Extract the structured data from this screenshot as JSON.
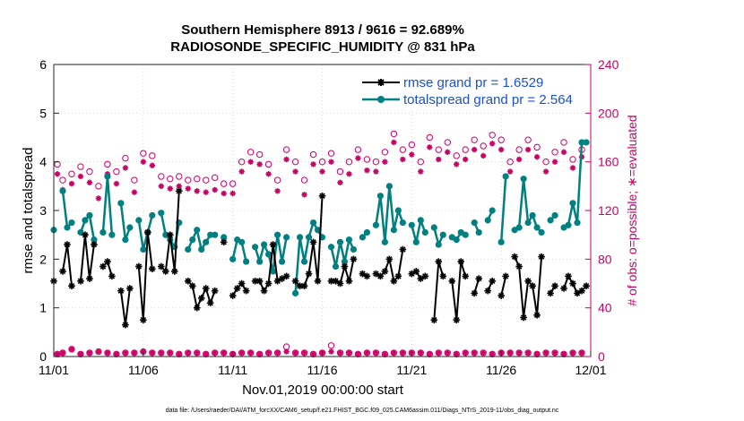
{
  "chart_data": {
    "type": "line",
    "title": "Southern Hemisphere 8913 / 9616 = 92.689%",
    "subtitle": "RADIOSONDE_SPECIFIC_HUMIDITY @ 831 hPa",
    "xlabel": "Nov.01,2019 00:00:00 start",
    "ylabel": "rmse and totalspread",
    "ylabel_right": "# of obs: o=possible; ∗=evaluated",
    "footnote": "data file: /Users/raeder/DAI/ATM_forcXX/CAM6_setup/f.e21.FHIST_BGC.f09_025.CAM6assim.011/Diags_NTrS_2019-11/obs_diag_output.nc",
    "xlim": [
      0,
      30
    ],
    "ylim": [
      0,
      6
    ],
    "ylim_right": [
      0,
      240
    ],
    "x_tick_labels": [
      "11/01",
      "11/06",
      "11/11",
      "11/16",
      "11/21",
      "11/26",
      "12/01"
    ],
    "x_tick_values": [
      0,
      5,
      10,
      15,
      20,
      25,
      30
    ],
    "y_ticks": [
      0,
      1,
      2,
      3,
      4,
      5,
      6
    ],
    "y_ticks_right": [
      0,
      40,
      80,
      120,
      160,
      200,
      240
    ],
    "legend_position": "top-right",
    "colors": {
      "rmse": "#000000",
      "totalspread": "#008080",
      "counts": "#cc0066"
    },
    "series": [
      {
        "name": "rmse grand pr = 1.6529",
        "axis": "left",
        "x": [
          0.0,
          0.25,
          0.5,
          0.75,
          1.0,
          1.25,
          1.5,
          1.75,
          2.0,
          2.25,
          2.5,
          2.75,
          3.0,
          3.25,
          3.5,
          3.75,
          4.0,
          4.25,
          4.5,
          4.75,
          5.0,
          5.25,
          5.5,
          5.75,
          6.0,
          6.25,
          6.5,
          6.75,
          7.0,
          7.25,
          7.5,
          7.75,
          8.0,
          8.25,
          8.5,
          8.75,
          9.0,
          9.25,
          9.5,
          9.75,
          10.0,
          10.25,
          10.5,
          10.75,
          11.0,
          11.25,
          11.5,
          11.75,
          12.0,
          12.25,
          12.5,
          12.75,
          13.0,
          13.25,
          13.5,
          13.75,
          14.0,
          14.25,
          14.5,
          14.75,
          15.0,
          15.25,
          15.5,
          15.75,
          16.0,
          16.25,
          16.5,
          16.75,
          17.0,
          17.25,
          17.5,
          17.75,
          18.0,
          18.25,
          18.5,
          18.75,
          19.0,
          19.25,
          19.5,
          19.75,
          20.0,
          20.25,
          20.5,
          20.75,
          21.0,
          21.25,
          21.5,
          21.75,
          22.0,
          22.25,
          22.5,
          22.75,
          23.0,
          23.25,
          23.5,
          23.75,
          24.0,
          24.25,
          24.5,
          24.75,
          25.0,
          25.25,
          25.5,
          25.75,
          26.0,
          26.25,
          26.5,
          26.75,
          27.0,
          27.25,
          27.5,
          27.75,
          28.0,
          28.25,
          28.5,
          28.75,
          29.0,
          29.25,
          29.5,
          29.75
        ],
        "values": [
          1.55,
          null,
          1.75,
          2.3,
          1.45,
          null,
          1.55,
          2.5,
          1.6,
          2.3,
          null,
          1.85,
          1.95,
          1.65,
          null,
          1.35,
          0.65,
          1.4,
          null,
          1.85,
          0.75,
          2.55,
          1.8,
          null,
          1.85,
          1.75,
          2.5,
          1.75,
          3.4,
          null,
          1.55,
          1.45,
          1.0,
          1.2,
          1.4,
          1.1,
          1.35,
          null,
          2.35,
          null,
          1.25,
          1.4,
          1.5,
          1.35,
          null,
          1.55,
          1.55,
          1.35,
          1.5,
          2.3,
          1.55,
          1.6,
          1.65,
          null,
          1.55,
          1.45,
          1.45,
          1.7,
          2.35,
          1.55,
          3.3,
          null,
          1.55,
          1.55,
          1.5,
          1.85,
          1.55,
          2.0,
          null,
          1.7,
          1.65,
          null,
          1.7,
          1.65,
          1.75,
          2.0,
          1.55,
          1.65,
          2.2,
          null,
          1.7,
          1.75,
          1.6,
          1.65,
          null,
          0.75,
          1.95,
          1.65,
          null,
          1.55,
          0.75,
          1.95,
          1.65,
          null,
          1.3,
          1.6,
          null,
          1.35,
          1.55,
          null,
          1.25,
          1.65,
          null,
          2.05,
          1.85,
          0.8,
          1.55,
          1.45,
          0.85,
          2.05,
          null,
          1.3,
          1.45,
          null,
          1.4,
          1.65,
          1.5,
          1.3,
          1.35,
          1.45
        ]
      },
      {
        "name": "totalspread grand pr = 2.564",
        "axis": "left",
        "x": [
          0.0,
          0.25,
          0.5,
          0.75,
          1.0,
          1.25,
          1.5,
          1.75,
          2.0,
          2.25,
          2.5,
          2.75,
          3.0,
          3.25,
          3.5,
          3.75,
          4.0,
          4.25,
          4.5,
          4.75,
          5.0,
          5.25,
          5.5,
          5.75,
          6.0,
          6.25,
          6.5,
          6.75,
          7.0,
          7.25,
          7.5,
          7.75,
          8.0,
          8.25,
          8.5,
          8.75,
          9.0,
          9.25,
          9.5,
          9.75,
          10.0,
          10.25,
          10.5,
          10.75,
          11.0,
          11.25,
          11.5,
          11.75,
          12.0,
          12.25,
          12.5,
          12.75,
          13.0,
          13.25,
          13.5,
          13.75,
          14.0,
          14.25,
          14.5,
          14.75,
          15.0,
          15.25,
          15.5,
          15.75,
          16.0,
          16.25,
          16.5,
          16.75,
          17.0,
          17.25,
          17.5,
          17.75,
          18.0,
          18.25,
          18.5,
          18.75,
          19.0,
          19.25,
          19.5,
          19.75,
          20.0,
          20.25,
          20.5,
          20.75,
          21.0,
          21.25,
          21.5,
          21.75,
          22.0,
          22.25,
          22.5,
          22.75,
          23.0,
          23.25,
          23.5,
          23.75,
          24.0,
          24.25,
          24.5,
          24.75,
          25.0,
          25.25,
          25.5,
          25.75,
          26.0,
          26.25,
          26.5,
          26.75,
          27.0,
          27.25,
          27.5,
          27.75,
          28.0,
          28.25,
          28.5,
          28.75,
          29.0,
          29.25,
          29.5,
          29.75
        ],
        "values": [
          2.6,
          null,
          3.4,
          2.65,
          2.75,
          null,
          2.55,
          2.8,
          2.9,
          2.4,
          null,
          2.55,
          3.7,
          2.5,
          null,
          3.15,
          2.4,
          2.65,
          null,
          2.8,
          2.2,
          2.55,
          2.9,
          null,
          2.95,
          2.5,
          2.4,
          2.25,
          2.75,
          null,
          2.2,
          2.4,
          2.6,
          2.2,
          2.35,
          2.5,
          2.5,
          null,
          2.45,
          null,
          2.0,
          2.4,
          2.35,
          1.95,
          null,
          2.25,
          1.95,
          2.3,
          2.1,
          1.75,
          2.5,
          1.95,
          2.45,
          null,
          1.3,
          2.45,
          1.95,
          2.45,
          2.75,
          2.6,
          2.45,
          null,
          2.25,
          1.85,
          2.35,
          1.95,
          2.4,
          2.2,
          null,
          2.45,
          2.55,
          null,
          2.7,
          3.3,
          2.35,
          3.5,
          2.6,
          3.0,
          2.75,
          null,
          2.7,
          2.35,
          2.8,
          2.55,
          null,
          2.65,
          2.3,
          2.5,
          null,
          2.45,
          2.4,
          2.55,
          2.5,
          null,
          2.75,
          2.55,
          null,
          2.8,
          3.0,
          null,
          2.35,
          3.7,
          null,
          2.6,
          2.65,
          3.65,
          2.75,
          2.9,
          2.65,
          2.55,
          null,
          2.8,
          2.9,
          null,
          2.65,
          2.7,
          3.15,
          2.75,
          4.4,
          4.4
        ]
      },
      {
        "name": "possible",
        "axis": "right",
        "marker": "circle",
        "x": [
          0.2,
          0.5,
          1.0,
          1.5,
          2.0,
          2.5,
          3.0,
          3.5,
          4.0,
          4.5,
          5.0,
          5.5,
          6.0,
          6.5,
          7.0,
          7.5,
          8.0,
          8.5,
          9.0,
          9.5,
          10.0,
          10.5,
          11.0,
          11.5,
          12.0,
          12.5,
          13.0,
          13.5,
          14.0,
          14.5,
          15.0,
          15.5,
          16.0,
          16.5,
          17.0,
          17.5,
          18.0,
          18.5,
          19.0,
          19.5,
          20.0,
          20.5,
          21.0,
          21.5,
          22.0,
          22.5,
          23.0,
          23.5,
          24.0,
          24.5,
          25.0,
          25.5,
          26.0,
          26.5,
          27.0,
          27.5,
          28.0,
          28.5,
          29.0,
          29.5
        ],
        "values": [
          158,
          145,
          150,
          156,
          152,
          140,
          158,
          152,
          163,
          145,
          167,
          165,
          148,
          146,
          148,
          145,
          146,
          145,
          147,
          142,
          142,
          160,
          168,
          166,
          158,
          145,
          170,
          160,
          145,
          166,
          160,
          167,
          152,
          160,
          170,
          162,
          160,
          168,
          183,
          170,
          174,
          160,
          180,
          170,
          176,
          165,
          170,
          178,
          173,
          182,
          178,
          160,
          170,
          178,
          172,
          160,
          168,
          176,
          162,
          170
        ]
      },
      {
        "name": "evaluated",
        "axis": "right",
        "marker": "asterisk",
        "x": [
          0.2,
          0.5,
          1.0,
          1.5,
          2.0,
          2.5,
          3.0,
          3.5,
          4.0,
          4.5,
          5.0,
          5.5,
          6.0,
          6.5,
          7.0,
          7.5,
          8.0,
          8.5,
          9.0,
          9.5,
          10.0,
          10.5,
          11.0,
          11.5,
          12.0,
          12.5,
          13.0,
          13.5,
          14.0,
          14.5,
          15.0,
          15.5,
          16.0,
          16.5,
          17.0,
          17.5,
          18.0,
          18.5,
          19.0,
          19.5,
          20.0,
          20.5,
          21.0,
          21.5,
          22.0,
          22.5,
          23.0,
          23.5,
          24.0,
          24.5,
          25.0,
          25.5,
          26.0,
          26.5,
          27.0,
          27.5,
          28.0,
          28.5,
          29.0,
          29.5
        ],
        "values": [
          150,
          137,
          142,
          148,
          143,
          130,
          150,
          142,
          155,
          135,
          160,
          157,
          140,
          138,
          140,
          138,
          136,
          135,
          137,
          134,
          134,
          152,
          160,
          158,
          150,
          136,
          162,
          152,
          133,
          158,
          152,
          160,
          143,
          150,
          163,
          153,
          152,
          160,
          176,
          162,
          166,
          152,
          172,
          162,
          168,
          158,
          162,
          170,
          165,
          175,
          170,
          152,
          162,
          170,
          164,
          152,
          160,
          168,
          155,
          164
        ]
      },
      {
        "name": "possible-low",
        "axis": "right",
        "marker": "circle",
        "x": [
          0.2,
          0.5,
          1.0,
          1.5,
          2.0,
          2.5,
          3.0,
          3.5,
          4.0,
          4.5,
          5.0,
          5.5,
          6.0,
          6.5,
          7.0,
          7.5,
          8.0,
          8.5,
          9.0,
          9.5,
          10.0,
          10.5,
          11.0,
          11.5,
          12.0,
          12.5,
          13.0,
          13.5,
          14.0,
          14.5,
          15.0,
          15.5,
          16.0,
          16.5,
          17.0,
          17.5,
          18.0,
          18.5,
          19.0,
          19.5,
          20.0,
          20.5,
          21.0,
          21.5,
          22.0,
          22.5,
          23.0,
          23.5,
          24.0,
          24.5,
          25.0,
          25.5,
          26.0,
          26.5,
          27.0,
          27.5,
          28.0,
          28.5,
          29.0,
          29.5
        ],
        "values": [
          2,
          3,
          6,
          2,
          3,
          4,
          3,
          2,
          3,
          3,
          4,
          3,
          3,
          3,
          2,
          3,
          3,
          2,
          3,
          3,
          2,
          3,
          3,
          2,
          3,
          3,
          8,
          3,
          3,
          2,
          3,
          9,
          3,
          3,
          2,
          3,
          3,
          2,
          3,
          3,
          3,
          3,
          2,
          3,
          3,
          2,
          3,
          3,
          3,
          2,
          3,
          3,
          3,
          3,
          2,
          3,
          3,
          2,
          3,
          3
        ]
      },
      {
        "name": "evaluated-low",
        "axis": "right",
        "marker": "asterisk",
        "x": [
          0.2,
          0.5,
          1.0,
          1.5,
          2.0,
          2.5,
          3.0,
          3.5,
          4.0,
          4.5,
          5.0,
          5.5,
          6.0,
          6.5,
          7.0,
          7.5,
          8.0,
          8.5,
          9.0,
          9.5,
          10.0,
          10.5,
          11.0,
          11.5,
          12.0,
          12.5,
          13.0,
          13.5,
          14.0,
          14.5,
          15.0,
          15.5,
          16.0,
          16.5,
          17.0,
          17.5,
          18.0,
          18.5,
          19.0,
          19.5,
          20.0,
          20.5,
          21.0,
          21.5,
          22.0,
          22.5,
          23.0,
          23.5,
          24.0,
          24.5,
          25.0,
          25.5,
          26.0,
          26.5,
          27.0,
          27.5,
          28.0,
          28.5,
          29.0,
          29.5
        ],
        "values": [
          2,
          3,
          6,
          2,
          3,
          4,
          3,
          2,
          3,
          3,
          4,
          3,
          3,
          3,
          2,
          3,
          3,
          2,
          3,
          3,
          2,
          3,
          3,
          2,
          3,
          3,
          4,
          3,
          3,
          2,
          3,
          4,
          3,
          3,
          2,
          3,
          3,
          2,
          3,
          3,
          3,
          3,
          2,
          3,
          3,
          2,
          3,
          3,
          3,
          2,
          3,
          3,
          3,
          3,
          2,
          3,
          3,
          2,
          3,
          3
        ]
      }
    ]
  }
}
